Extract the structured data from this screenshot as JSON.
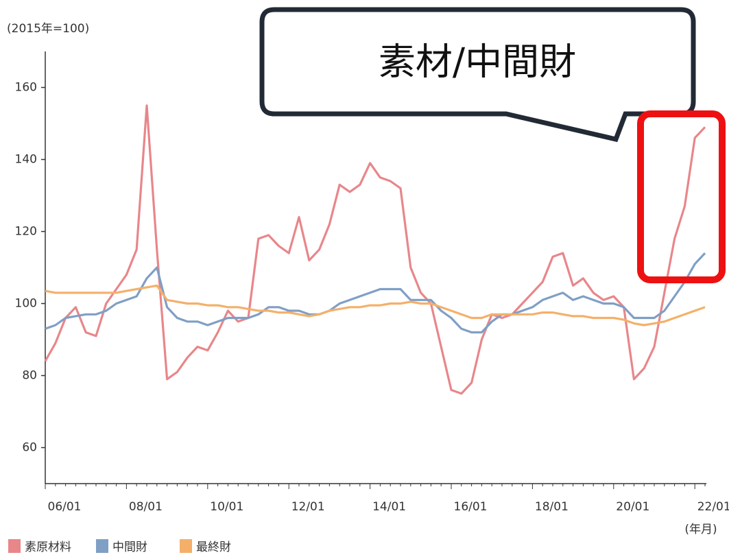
{
  "chart_data": {
    "type": "line",
    "y_unit_label": "(2015年=100)",
    "x_unit_label": "(年月)",
    "callout": "素材/中間財",
    "categories": [
      "06/01",
      null,
      null,
      null,
      null,
      null,
      null,
      null,
      "08/01",
      null,
      null,
      null,
      null,
      null,
      null,
      null,
      "10/01",
      null,
      null,
      null,
      null,
      null,
      null,
      null,
      "12/01",
      null,
      null,
      null,
      null,
      null,
      null,
      null,
      "14/01",
      null,
      null,
      null,
      null,
      null,
      null,
      null,
      "16/01",
      null,
      null,
      null,
      null,
      null,
      null,
      null,
      "18/01",
      null,
      null,
      null,
      null,
      null,
      null,
      null,
      "20/01",
      null,
      null,
      null,
      null,
      null,
      null,
      null,
      "22/01",
      null
    ],
    "series": [
      {
        "name": "素原材料",
        "color": "#e8868a",
        "values": [
          84,
          89,
          96,
          99,
          92,
          91,
          100,
          104,
          108,
          115,
          155,
          115,
          79,
          81,
          85,
          88,
          87,
          92,
          98,
          95,
          96,
          118,
          119,
          116,
          114,
          124,
          112,
          115,
          122,
          133,
          131,
          133,
          139,
          135,
          134,
          132,
          110,
          103,
          100,
          88,
          76,
          75,
          78,
          90,
          97,
          96,
          97,
          100,
          103,
          106,
          113,
          114,
          105,
          107,
          103,
          101,
          102,
          99,
          79,
          82,
          88,
          103,
          118,
          127,
          146,
          149
        ]
      },
      {
        "name": "中間財",
        "color": "#7f9fc5",
        "values": [
          93,
          94,
          96,
          96.5,
          97,
          97,
          98,
          100,
          101,
          102,
          107,
          110,
          99,
          96,
          95,
          95,
          94,
          95,
          96,
          96,
          96,
          97,
          99,
          99,
          98,
          98,
          97,
          97,
          98,
          100,
          101,
          102,
          103,
          104,
          104,
          104,
          101,
          101,
          101,
          98,
          96,
          93,
          92,
          92,
          95,
          97,
          97,
          98,
          99,
          101,
          102,
          103,
          101,
          102,
          101,
          100,
          100,
          99,
          96,
          96,
          96,
          98,
          102,
          106,
          111,
          114
        ]
      },
      {
        "name": "最終財",
        "color": "#f4b06a",
        "values": [
          103.5,
          103,
          103,
          103,
          103,
          103,
          103,
          103,
          103.5,
          104,
          104.5,
          105,
          101,
          100.5,
          100,
          100,
          99.5,
          99.5,
          99,
          99,
          98.5,
          98,
          98,
          97.5,
          97.5,
          97,
          96.5,
          97,
          98,
          98.5,
          99,
          99,
          99.5,
          99.5,
          100,
          100,
          100.5,
          100,
          100,
          99,
          98,
          97,
          96,
          96,
          97,
          97,
          97,
          97,
          97,
          97.5,
          97.5,
          97,
          96.5,
          96.5,
          96,
          96,
          96,
          95.5,
          94.5,
          94,
          94.5,
          95,
          96,
          97,
          98,
          99
        ]
      }
    ],
    "ylim": [
      50,
      170
    ],
    "yticks": [
      60,
      80,
      100,
      120,
      140,
      160
    ],
    "grid": false
  }
}
